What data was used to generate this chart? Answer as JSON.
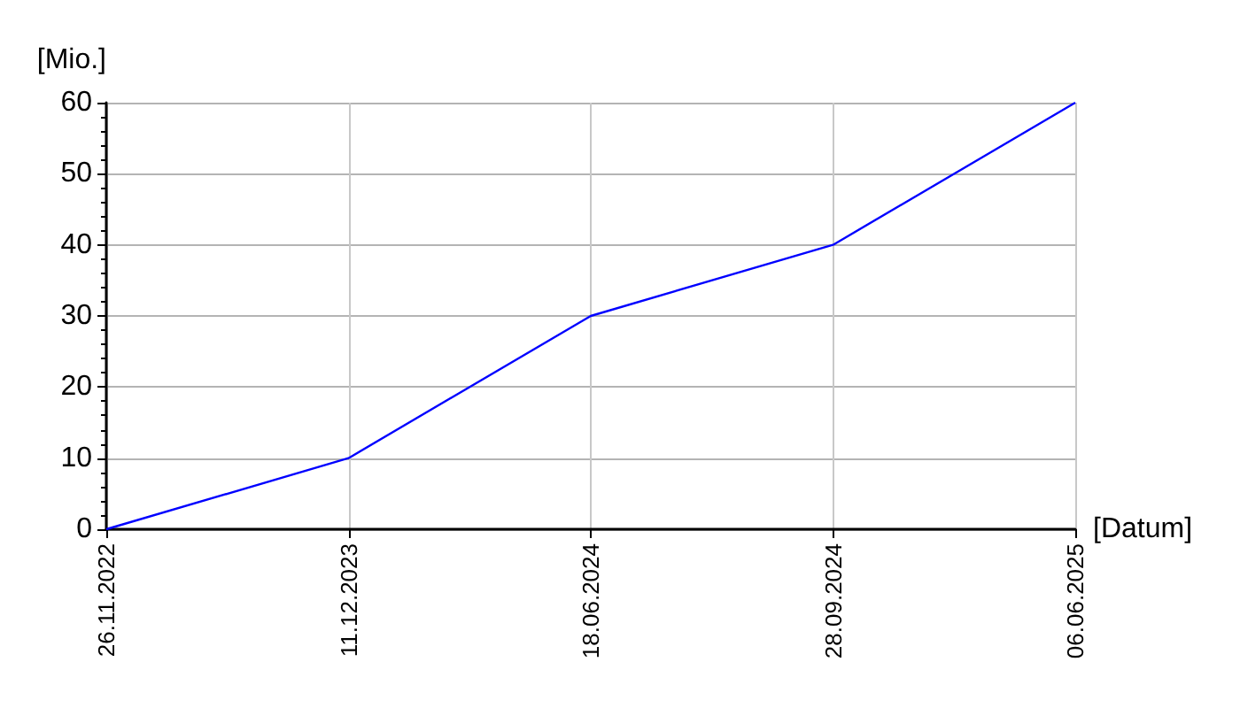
{
  "chart_data": {
    "type": "line",
    "xlabel": "[Datum]",
    "ylabel": "[Mio.]",
    "categories": [
      "26.11.2022",
      "11.12.2023",
      "18.06.2024",
      "28.09.2024",
      "06.06.2025"
    ],
    "values": [
      0,
      10,
      30,
      40,
      60
    ],
    "color": "#0000ff",
    "ylim": [
      0,
      60
    ],
    "yticks": [
      0,
      10,
      20,
      30,
      40,
      50,
      60
    ],
    "grid": true,
    "marker": "none",
    "line_style": "solid"
  }
}
